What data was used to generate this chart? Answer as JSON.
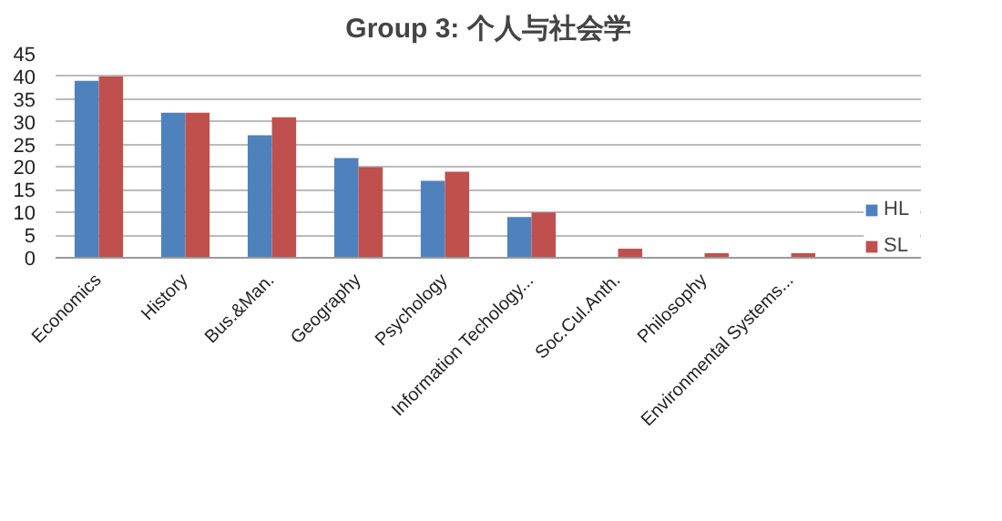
{
  "chart_data": {
    "type": "bar",
    "title": "Group 3: 个人与社会学",
    "categories": [
      "Economics",
      "History",
      "Bus.&Man.",
      "Geography",
      "Psychology",
      "Information Techology...",
      "Soc.Cul.Anth.",
      "Philosophy",
      "Environmental Systems..."
    ],
    "series": [
      {
        "name": "HL",
        "color": "#4f81bd",
        "values": [
          39,
          32,
          27,
          22,
          17,
          9,
          0,
          0,
          0
        ]
      },
      {
        "name": "SL",
        "color": "#c0504d",
        "values": [
          40,
          32,
          31,
          20,
          19,
          10,
          2,
          1,
          1
        ]
      }
    ],
    "ylim": [
      0,
      45
    ],
    "yticks": [
      0,
      5,
      10,
      15,
      20,
      25,
      30,
      35,
      40,
      45
    ],
    "grid": "y",
    "legend": "right"
  }
}
